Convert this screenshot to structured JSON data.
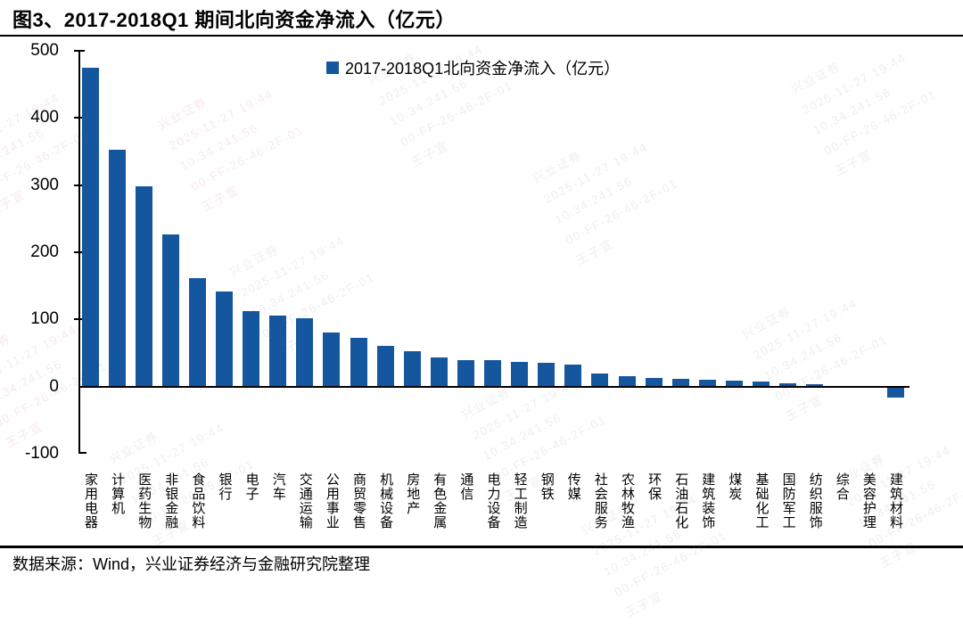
{
  "figure": {
    "title": "图3、2017-2018Q1 期间北向资金净流入（亿元）",
    "source_note": "数据来源：Wind，兴业证券经济与金融研究院整理"
  },
  "legend": {
    "label": "2017-2018Q1北向资金净流入（亿元）"
  },
  "colors": {
    "bar": "#15579F",
    "axis": "#000000"
  },
  "watermark": {
    "lines": [
      "兴业证券",
      "2025-11-27 19:44",
      "10.34.241.56",
      "00-FF-26-46-2F-01",
      "王子宣"
    ]
  },
  "chart_data": {
    "type": "bar",
    "title": "图3、2017-2018Q1 期间北向资金净流入（亿元）",
    "legend": [
      "2017-2018Q1北向资金净流入（亿元）"
    ],
    "legend_position": "top-center",
    "grid": false,
    "xlabel": "",
    "ylabel": "",
    "ylim": [
      -100,
      500
    ],
    "yticks": [
      -100,
      0,
      100,
      200,
      300,
      400,
      500
    ],
    "bar_color": "#15579F",
    "categories": [
      "家用电器",
      "计算机",
      "医药生物",
      "非银金融",
      "食品饮料",
      "银行",
      "电子",
      "汽车",
      "交通运输",
      "公用事业",
      "商贸零售",
      "机械设备",
      "房地产",
      "有色金属",
      "通信",
      "电力设备",
      "轻工制造",
      "钢铁",
      "传媒",
      "社会服务",
      "农林牧渔",
      "环保",
      "石油石化",
      "建筑装饰",
      "煤炭",
      "基础化工",
      "国防军工",
      "纺织服饰",
      "综合",
      "美容护理",
      "建筑材料"
    ],
    "values": [
      475,
      353,
      298,
      226,
      161,
      142,
      113,
      106,
      102,
      80,
      73,
      61,
      52,
      44,
      40,
      39,
      37,
      36,
      33,
      20,
      15,
      13,
      11,
      10,
      9,
      7,
      5,
      3.5,
      1.5,
      0.5,
      -16
    ]
  }
}
